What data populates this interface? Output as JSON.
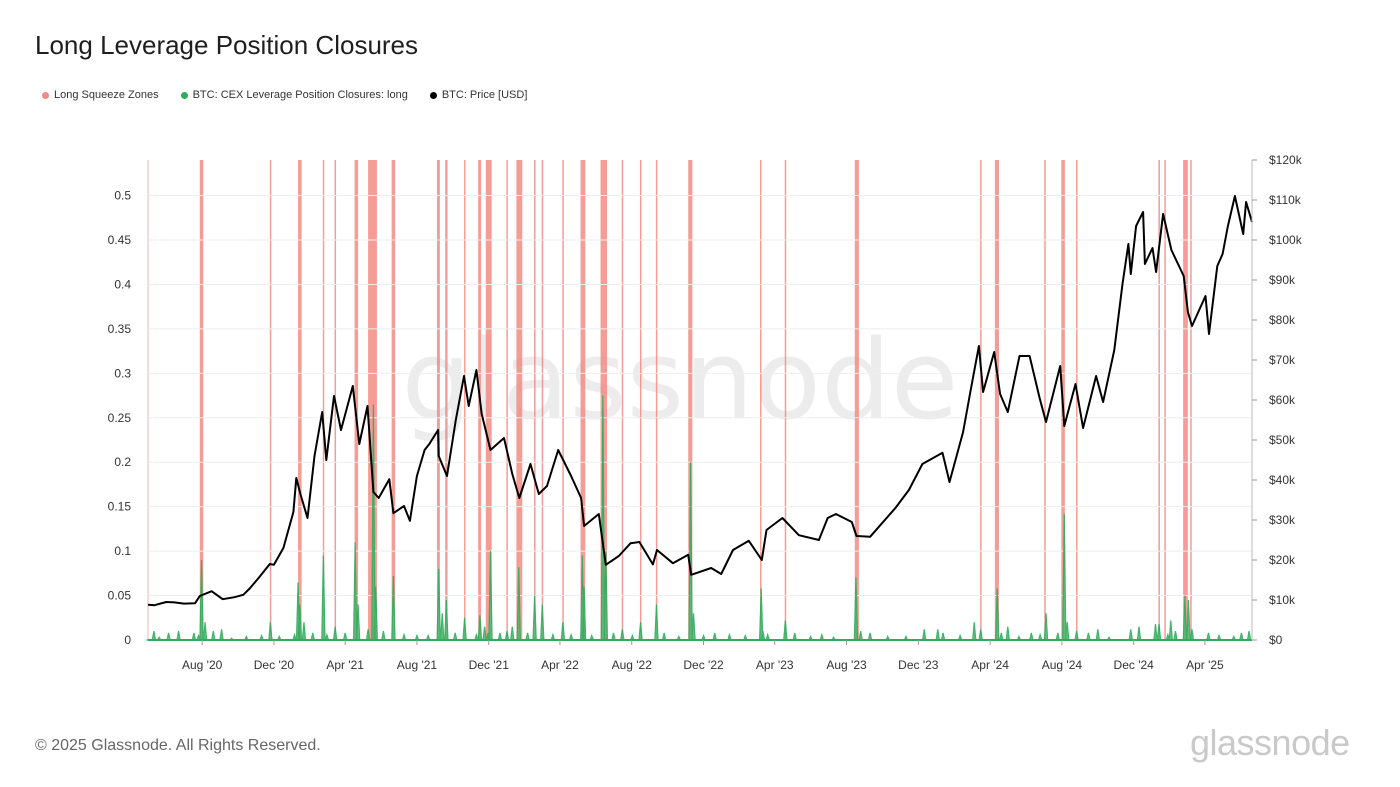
{
  "chart_data": {
    "type": "line",
    "title": "Long Leverage Position Closures",
    "legend": [
      {
        "label": "Long Squeeze Zones",
        "color": "#f28b82"
      },
      {
        "label": "BTC: CEX Leverage Position Closures: long",
        "color": "#2eab5c"
      },
      {
        "label": "BTC: Price [USD]",
        "color": "#000000"
      }
    ],
    "x_range": [
      "2020-05-01",
      "2025-06-20"
    ],
    "x_ticks": [
      "Aug '20",
      "Dec '20",
      "Apr '21",
      "Aug '21",
      "Dec '21",
      "Apr '22",
      "Aug '22",
      "Dec '22",
      "Apr '23",
      "Aug '23",
      "Dec '23",
      "Apr '24",
      "Aug '24",
      "Dec '24",
      "Apr '25"
    ],
    "y_left": {
      "min": 0,
      "max": 0.54,
      "ticks": [
        "0",
        "0.05",
        "0.1",
        "0.15",
        "0.2",
        "0.25",
        "0.3",
        "0.35",
        "0.4",
        "0.45",
        "0.5"
      ]
    },
    "y_right": {
      "min": 0,
      "max": 120000,
      "ticks": [
        "$0",
        "$10k",
        "$20k",
        "$30k",
        "$40k",
        "$50k",
        "$60k",
        "$70k",
        "$80k",
        "$90k",
        "$100k",
        "$110k",
        "$120k"
      ]
    },
    "squeeze_zones": [
      [
        "2020-07-28",
        "2020-08-03"
      ],
      [
        "2020-11-24",
        "2020-11-26"
      ],
      [
        "2021-01-11",
        "2021-01-17"
      ],
      [
        "2021-02-22",
        "2021-02-24"
      ],
      [
        "2021-03-14",
        "2021-03-16"
      ],
      [
        "2021-04-17",
        "2021-04-23"
      ],
      [
        "2021-05-10",
        "2021-05-25"
      ],
      [
        "2021-06-19",
        "2021-06-25"
      ],
      [
        "2021-09-04",
        "2021-09-09"
      ],
      [
        "2021-09-18",
        "2021-09-22"
      ],
      [
        "2021-10-20",
        "2021-10-22"
      ],
      [
        "2021-11-13",
        "2021-11-18"
      ],
      [
        "2021-11-26",
        "2021-12-06"
      ],
      [
        "2021-12-31",
        "2022-01-02"
      ],
      [
        "2022-01-17",
        "2022-01-27"
      ],
      [
        "2022-02-16",
        "2022-02-18"
      ],
      [
        "2022-03-01",
        "2022-03-03"
      ],
      [
        "2022-04-05",
        "2022-04-07"
      ],
      [
        "2022-05-06",
        "2022-05-14"
      ],
      [
        "2022-06-09",
        "2022-06-20"
      ],
      [
        "2022-07-15",
        "2022-07-17"
      ],
      [
        "2022-08-15",
        "2022-08-17"
      ],
      [
        "2022-09-11",
        "2022-09-13"
      ],
      [
        "2022-11-05",
        "2022-11-12"
      ],
      [
        "2023-03-07",
        "2023-03-09"
      ],
      [
        "2023-04-18",
        "2023-04-20"
      ],
      [
        "2023-08-15",
        "2023-08-22"
      ],
      [
        "2024-03-15",
        "2024-03-17"
      ],
      [
        "2024-04-09",
        "2024-04-16"
      ],
      [
        "2024-07-02",
        "2024-07-04"
      ],
      [
        "2024-07-31",
        "2024-08-06"
      ],
      [
        "2024-08-25",
        "2024-08-27"
      ],
      [
        "2025-01-12",
        "2025-01-14"
      ],
      [
        "2025-01-22",
        "2025-01-24"
      ],
      [
        "2025-02-23",
        "2025-03-03"
      ],
      [
        "2025-03-07",
        "2025-03-09"
      ]
    ],
    "closures_long": [
      [
        "2020-05-01",
        0.0
      ],
      [
        "2020-05-11",
        0.01
      ],
      [
        "2020-05-20",
        0.003
      ],
      [
        "2020-06-05",
        0.008
      ],
      [
        "2020-06-22",
        0.01
      ],
      [
        "2020-07-05",
        0.0
      ],
      [
        "2020-07-18",
        0.008
      ],
      [
        "2020-07-26",
        0.005
      ],
      [
        "2020-07-31",
        0.09
      ],
      [
        "2020-08-06",
        0.02
      ],
      [
        "2020-08-20",
        0.01
      ],
      [
        "2020-09-03",
        0.012
      ],
      [
        "2020-09-20",
        0.002
      ],
      [
        "2020-10-15",
        0.004
      ],
      [
        "2020-11-10",
        0.005
      ],
      [
        "2020-11-25",
        0.02
      ],
      [
        "2020-12-10",
        0.004
      ],
      [
        "2021-01-05",
        0.006
      ],
      [
        "2021-01-11",
        0.065
      ],
      [
        "2021-01-14",
        0.04
      ],
      [
        "2021-01-21",
        0.02
      ],
      [
        "2021-02-05",
        0.008
      ],
      [
        "2021-02-23",
        0.095
      ],
      [
        "2021-03-01",
        0.006
      ],
      [
        "2021-03-15",
        0.015
      ],
      [
        "2021-04-01",
        0.008
      ],
      [
        "2021-04-18",
        0.11
      ],
      [
        "2021-04-23",
        0.04
      ],
      [
        "2021-05-10",
        0.012
      ],
      [
        "2021-05-19",
        0.265
      ],
      [
        "2021-05-23",
        0.06
      ],
      [
        "2021-06-05",
        0.01
      ],
      [
        "2021-06-22",
        0.072
      ],
      [
        "2021-07-10",
        0.006
      ],
      [
        "2021-08-01",
        0.005
      ],
      [
        "2021-08-20",
        0.005
      ],
      [
        "2021-09-07",
        0.08
      ],
      [
        "2021-09-13",
        0.03
      ],
      [
        "2021-09-20",
        0.045
      ],
      [
        "2021-10-05",
        0.008
      ],
      [
        "2021-10-21",
        0.025
      ],
      [
        "2021-11-10",
        0.006
      ],
      [
        "2021-11-16",
        0.028
      ],
      [
        "2021-11-24",
        0.015
      ],
      [
        "2021-11-30",
        0.008
      ],
      [
        "2021-12-04",
        0.1
      ],
      [
        "2021-12-20",
        0.008
      ],
      [
        "2022-01-01",
        0.01
      ],
      [
        "2022-01-10",
        0.015
      ],
      [
        "2022-01-21",
        0.082
      ],
      [
        "2022-02-05",
        0.008
      ],
      [
        "2022-02-17",
        0.05
      ],
      [
        "2022-03-02",
        0.04
      ],
      [
        "2022-03-20",
        0.006
      ],
      [
        "2022-04-06",
        0.02
      ],
      [
        "2022-04-20",
        0.006
      ],
      [
        "2022-05-09",
        0.095
      ],
      [
        "2022-05-12",
        0.06
      ],
      [
        "2022-05-25",
        0.005
      ],
      [
        "2022-06-13",
        0.275
      ],
      [
        "2022-06-18",
        0.1
      ],
      [
        "2022-07-01",
        0.008
      ],
      [
        "2022-07-16",
        0.012
      ],
      [
        "2022-08-02",
        0.005
      ],
      [
        "2022-08-16",
        0.02
      ],
      [
        "2022-09-12",
        0.04
      ],
      [
        "2022-09-25",
        0.008
      ],
      [
        "2022-10-20",
        0.004
      ],
      [
        "2022-11-09",
        0.2
      ],
      [
        "2022-11-14",
        0.03
      ],
      [
        "2022-12-01",
        0.005
      ],
      [
        "2022-12-20",
        0.008
      ],
      [
        "2023-01-14",
        0.006
      ],
      [
        "2023-02-10",
        0.005
      ],
      [
        "2023-03-09",
        0.058
      ],
      [
        "2023-03-12",
        0.01
      ],
      [
        "2023-03-20",
        0.006
      ],
      [
        "2023-04-19",
        0.022
      ],
      [
        "2023-05-05",
        0.008
      ],
      [
        "2023-06-01",
        0.004
      ],
      [
        "2023-06-20",
        0.006
      ],
      [
        "2023-07-10",
        0.003
      ],
      [
        "2023-08-17",
        0.07
      ],
      [
        "2023-08-25",
        0.01
      ],
      [
        "2023-09-10",
        0.008
      ],
      [
        "2023-10-10",
        0.004
      ],
      [
        "2023-11-10",
        0.004
      ],
      [
        "2023-12-11",
        0.012
      ],
      [
        "2024-01-03",
        0.012
      ],
      [
        "2024-01-12",
        0.008
      ],
      [
        "2024-02-10",
        0.005
      ],
      [
        "2024-03-05",
        0.02
      ],
      [
        "2024-03-16",
        0.012
      ],
      [
        "2024-04-13",
        0.058
      ],
      [
        "2024-04-20",
        0.008
      ],
      [
        "2024-05-01",
        0.015
      ],
      [
        "2024-05-20",
        0.004
      ],
      [
        "2024-06-10",
        0.008
      ],
      [
        "2024-06-25",
        0.006
      ],
      [
        "2024-07-05",
        0.03
      ],
      [
        "2024-07-25",
        0.008
      ],
      [
        "2024-08-05",
        0.142
      ],
      [
        "2024-08-10",
        0.02
      ],
      [
        "2024-08-26",
        0.01
      ],
      [
        "2024-09-15",
        0.008
      ],
      [
        "2024-10-01",
        0.012
      ],
      [
        "2024-10-20",
        0.003
      ],
      [
        "2024-11-26",
        0.012
      ],
      [
        "2024-12-10",
        0.015
      ],
      [
        "2025-01-07",
        0.018
      ],
      [
        "2025-01-13",
        0.018
      ],
      [
        "2025-01-28",
        0.006
      ],
      [
        "2025-02-02",
        0.022
      ],
      [
        "2025-02-10",
        0.01
      ],
      [
        "2025-02-26",
        0.05
      ],
      [
        "2025-03-04",
        0.045
      ],
      [
        "2025-03-10",
        0.012
      ],
      [
        "2025-04-07",
        0.008
      ],
      [
        "2025-04-25",
        0.005
      ],
      [
        "2025-05-20",
        0.004
      ],
      [
        "2025-06-02",
        0.008
      ],
      [
        "2025-06-15",
        0.01
      ]
    ],
    "btc_price": [
      [
        "2020-05-01",
        8800
      ],
      [
        "2020-05-12",
        8700
      ],
      [
        "2020-06-01",
        9500
      ],
      [
        "2020-06-15",
        9400
      ],
      [
        "2020-07-01",
        9100
      ],
      [
        "2020-07-20",
        9200
      ],
      [
        "2020-07-28",
        11000
      ],
      [
        "2020-08-17",
        12200
      ],
      [
        "2020-09-05",
        10200
      ],
      [
        "2020-09-25",
        10700
      ],
      [
        "2020-10-10",
        11300
      ],
      [
        "2020-10-21",
        12900
      ],
      [
        "2020-11-05",
        15500
      ],
      [
        "2020-11-24",
        19000
      ],
      [
        "2020-12-01",
        18800
      ],
      [
        "2020-12-17",
        23000
      ],
      [
        "2021-01-03",
        32000
      ],
      [
        "2021-01-08",
        40500
      ],
      [
        "2021-01-15",
        36500
      ],
      [
        "2021-01-27",
        30500
      ],
      [
        "2021-02-08",
        46000
      ],
      [
        "2021-02-21",
        57000
      ],
      [
        "2021-02-28",
        45000
      ],
      [
        "2021-03-13",
        61000
      ],
      [
        "2021-03-25",
        52500
      ],
      [
        "2021-04-14",
        63500
      ],
      [
        "2021-04-25",
        49000
      ],
      [
        "2021-05-09",
        58500
      ],
      [
        "2021-05-19",
        37000
      ],
      [
        "2021-05-28",
        35500
      ],
      [
        "2021-06-15",
        40200
      ],
      [
        "2021-06-22",
        31700
      ],
      [
        "2021-07-10",
        33500
      ],
      [
        "2021-07-20",
        29800
      ],
      [
        "2021-08-01",
        41000
      ],
      [
        "2021-08-14",
        47500
      ],
      [
        "2021-08-22",
        49000
      ],
      [
        "2021-09-06",
        52500
      ],
      [
        "2021-09-07",
        46000
      ],
      [
        "2021-09-21",
        41000
      ],
      [
        "2021-10-06",
        55000
      ],
      [
        "2021-10-20",
        66000
      ],
      [
        "2021-10-28",
        58500
      ],
      [
        "2021-11-10",
        67500
      ],
      [
        "2021-11-19",
        56500
      ],
      [
        "2021-12-04",
        47500
      ],
      [
        "2021-12-27",
        50500
      ],
      [
        "2022-01-10",
        41500
      ],
      [
        "2022-01-22",
        35500
      ],
      [
        "2022-02-10",
        44000
      ],
      [
        "2022-02-24",
        36500
      ],
      [
        "2022-03-10",
        38500
      ],
      [
        "2022-03-29",
        47500
      ],
      [
        "2022-04-20",
        41000
      ],
      [
        "2022-05-07",
        35500
      ],
      [
        "2022-05-12",
        28500
      ],
      [
        "2022-06-06",
        31500
      ],
      [
        "2022-06-18",
        18800
      ],
      [
        "2022-07-10",
        21000
      ],
      [
        "2022-07-30",
        24200
      ],
      [
        "2022-08-14",
        24500
      ],
      [
        "2022-09-06",
        18900
      ],
      [
        "2022-09-13",
        22500
      ],
      [
        "2022-10-10",
        19200
      ],
      [
        "2022-11-05",
        21300
      ],
      [
        "2022-11-10",
        16300
      ],
      [
        "2022-12-14",
        18000
      ],
      [
        "2022-12-31",
        16500
      ],
      [
        "2023-01-20",
        22500
      ],
      [
        "2023-02-16",
        24800
      ],
      [
        "2023-03-10",
        20000
      ],
      [
        "2023-03-18",
        27500
      ],
      [
        "2023-04-14",
        30500
      ],
      [
        "2023-05-12",
        26200
      ],
      [
        "2023-06-15",
        25000
      ],
      [
        "2023-06-30",
        30500
      ],
      [
        "2023-07-14",
        31500
      ],
      [
        "2023-08-10",
        29500
      ],
      [
        "2023-08-18",
        26000
      ],
      [
        "2023-09-10",
        25800
      ],
      [
        "2023-10-23",
        33000
      ],
      [
        "2023-11-15",
        37500
      ],
      [
        "2023-12-08",
        44000
      ],
      [
        "2024-01-11",
        46800
      ],
      [
        "2024-01-23",
        39500
      ],
      [
        "2024-02-15",
        52000
      ],
      [
        "2024-02-28",
        62500
      ],
      [
        "2024-03-13",
        73500
      ],
      [
        "2024-03-20",
        62000
      ],
      [
        "2024-04-08",
        72000
      ],
      [
        "2024-04-18",
        61500
      ],
      [
        "2024-05-01",
        57000
      ],
      [
        "2024-05-21",
        71000
      ],
      [
        "2024-06-07",
        71000
      ],
      [
        "2024-06-24",
        60500
      ],
      [
        "2024-07-05",
        54500
      ],
      [
        "2024-07-29",
        68500
      ],
      [
        "2024-08-05",
        53500
      ],
      [
        "2024-08-24",
        64000
      ],
      [
        "2024-09-06",
        53000
      ],
      [
        "2024-09-28",
        66000
      ],
      [
        "2024-10-10",
        59500
      ],
      [
        "2024-10-29",
        72500
      ],
      [
        "2024-11-12",
        89000
      ],
      [
        "2024-11-22",
        99000
      ],
      [
        "2024-11-26",
        91500
      ],
      [
        "2024-12-05",
        103500
      ],
      [
        "2024-12-17",
        107000
      ],
      [
        "2024-12-20",
        94000
      ],
      [
        "2025-01-02",
        98000
      ],
      [
        "2025-01-08",
        92000
      ],
      [
        "2025-01-20",
        106500
      ],
      [
        "2025-02-03",
        97500
      ],
      [
        "2025-02-24",
        91000
      ],
      [
        "2025-03-03",
        82000
      ],
      [
        "2025-03-10",
        78500
      ],
      [
        "2025-04-02",
        86000
      ],
      [
        "2025-04-08",
        76500
      ],
      [
        "2025-04-22",
        93500
      ],
      [
        "2025-05-01",
        96500
      ],
      [
        "2025-05-10",
        103500
      ],
      [
        "2025-05-22",
        111000
      ],
      [
        "2025-06-05",
        101500
      ],
      [
        "2025-06-10",
        109500
      ],
      [
        "2025-06-20",
        104500
      ]
    ]
  },
  "footer": {
    "copyright": "© 2025 Glassnode. All Rights Reserved.",
    "brand": "glassnode"
  },
  "watermark": "glassnode"
}
